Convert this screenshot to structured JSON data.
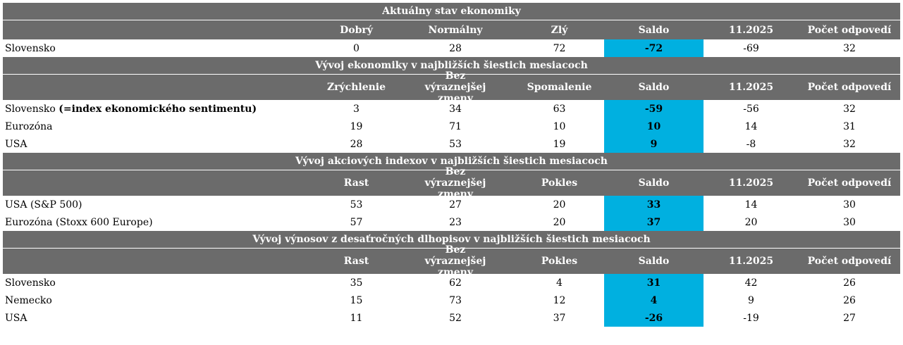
{
  "sections": [
    {
      "title": "Aktuálny stav ekonomiky",
      "headers": [
        "",
        "Dobrý",
        "Normálny",
        "Zlý",
        "Saldo",
        "11.2025",
        "Počet odpovedí"
      ],
      "rows": [
        {
          "label": "Slovensko",
          "label_bold": "",
          "values": [
            "0",
            "28",
            "72",
            "-72",
            "-69",
            "32"
          ]
        }
      ]
    },
    {
      "title": "Vývoj ekonomiky v najbližších šiestich mesiacoch",
      "headers": [
        "",
        "Zrýchlenie",
        "Bez výraznejšej zmeny",
        "Spomalenie",
        "Saldo",
        "11.2025",
        "Počet odpovedí"
      ],
      "rows": [
        {
          "label": "Slovensko ",
          "label_bold": "(=index ekonomického sentimentu)",
          "values": [
            "3",
            "34",
            "63",
            "-59",
            "-56",
            "32"
          ]
        },
        {
          "label": "Eurozóna",
          "label_bold": "",
          "values": [
            "19",
            "71",
            "10",
            "10",
            "14",
            "31"
          ]
        },
        {
          "label": "USA",
          "label_bold": "",
          "values": [
            "28",
            "53",
            "19",
            "9",
            "-8",
            "32"
          ]
        }
      ]
    },
    {
      "title": "Vývoj akciových indexov v najbližších šiestich mesiacoch",
      "headers": [
        "",
        "Rast",
        "Bez výraznejšej zmeny",
        "Pokles",
        "Saldo",
        "11.2025",
        "Počet odpovedí"
      ],
      "rows": [
        {
          "label": "USA (S&P 500)",
          "label_bold": "",
          "values": [
            "53",
            "27",
            "20",
            "33",
            "14",
            "30"
          ]
        },
        {
          "label": "Eurozóna (Stoxx 600 Europe)",
          "label_bold": "",
          "values": [
            "57",
            "23",
            "20",
            "37",
            "20",
            "30"
          ]
        }
      ]
    },
    {
      "title": "Vývoj výnosov z desaťročných dlhopisov v najbližších šiestich mesiacoch",
      "headers": [
        "",
        "Rast",
        "Bez výraznejšej zmeny",
        "Pokles",
        "Saldo",
        "11.2025",
        "Počet odpovedí"
      ],
      "rows": [
        {
          "label": "Slovensko",
          "label_bold": "",
          "values": [
            "35",
            "62",
            "4",
            "31",
            "42",
            "26"
          ]
        },
        {
          "label": "Nemecko",
          "label_bold": "",
          "values": [
            "15",
            "73",
            "12",
            "4",
            "9",
            "26"
          ]
        },
        {
          "label": "USA",
          "label_bold": "",
          "values": [
            "11",
            "52",
            "37",
            "-26",
            "-19",
            "27"
          ]
        }
      ]
    }
  ],
  "colors": {
    "header_bg": "#6b6b6b",
    "saldo_bg": "#00b0e0",
    "header_text": "#ffffff"
  }
}
